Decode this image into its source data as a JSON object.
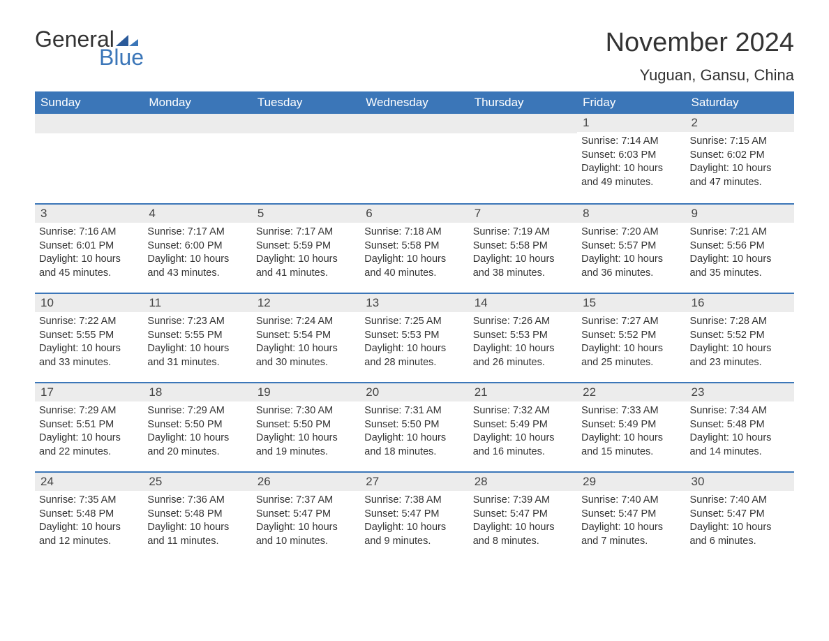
{
  "brand": {
    "word1": "General",
    "word2": "Blue",
    "logo_color": "#3b76b8"
  },
  "title": "November 2024",
  "location": "Yuguan, Gansu, China",
  "colors": {
    "header_bg": "#3b76b8",
    "header_text": "#ffffff",
    "daynum_bg": "#ececec",
    "text": "#333333",
    "divider": "#3b76b8"
  },
  "fonts": {
    "title_size": 38,
    "location_size": 22,
    "header_size": 17,
    "body_size": 14.5
  },
  "weekdays": [
    "Sunday",
    "Monday",
    "Tuesday",
    "Wednesday",
    "Thursday",
    "Friday",
    "Saturday"
  ],
  "first_weekday_index": 5,
  "days": [
    {
      "n": 1,
      "sunrise": "7:14 AM",
      "sunset": "6:03 PM",
      "daylight": "10 hours and 49 minutes."
    },
    {
      "n": 2,
      "sunrise": "7:15 AM",
      "sunset": "6:02 PM",
      "daylight": "10 hours and 47 minutes."
    },
    {
      "n": 3,
      "sunrise": "7:16 AM",
      "sunset": "6:01 PM",
      "daylight": "10 hours and 45 minutes."
    },
    {
      "n": 4,
      "sunrise": "7:17 AM",
      "sunset": "6:00 PM",
      "daylight": "10 hours and 43 minutes."
    },
    {
      "n": 5,
      "sunrise": "7:17 AM",
      "sunset": "5:59 PM",
      "daylight": "10 hours and 41 minutes."
    },
    {
      "n": 6,
      "sunrise": "7:18 AM",
      "sunset": "5:58 PM",
      "daylight": "10 hours and 40 minutes."
    },
    {
      "n": 7,
      "sunrise": "7:19 AM",
      "sunset": "5:58 PM",
      "daylight": "10 hours and 38 minutes."
    },
    {
      "n": 8,
      "sunrise": "7:20 AM",
      "sunset": "5:57 PM",
      "daylight": "10 hours and 36 minutes."
    },
    {
      "n": 9,
      "sunrise": "7:21 AM",
      "sunset": "5:56 PM",
      "daylight": "10 hours and 35 minutes."
    },
    {
      "n": 10,
      "sunrise": "7:22 AM",
      "sunset": "5:55 PM",
      "daylight": "10 hours and 33 minutes."
    },
    {
      "n": 11,
      "sunrise": "7:23 AM",
      "sunset": "5:55 PM",
      "daylight": "10 hours and 31 minutes."
    },
    {
      "n": 12,
      "sunrise": "7:24 AM",
      "sunset": "5:54 PM",
      "daylight": "10 hours and 30 minutes."
    },
    {
      "n": 13,
      "sunrise": "7:25 AM",
      "sunset": "5:53 PM",
      "daylight": "10 hours and 28 minutes."
    },
    {
      "n": 14,
      "sunrise": "7:26 AM",
      "sunset": "5:53 PM",
      "daylight": "10 hours and 26 minutes."
    },
    {
      "n": 15,
      "sunrise": "7:27 AM",
      "sunset": "5:52 PM",
      "daylight": "10 hours and 25 minutes."
    },
    {
      "n": 16,
      "sunrise": "7:28 AM",
      "sunset": "5:52 PM",
      "daylight": "10 hours and 23 minutes."
    },
    {
      "n": 17,
      "sunrise": "7:29 AM",
      "sunset": "5:51 PM",
      "daylight": "10 hours and 22 minutes."
    },
    {
      "n": 18,
      "sunrise": "7:29 AM",
      "sunset": "5:50 PM",
      "daylight": "10 hours and 20 minutes."
    },
    {
      "n": 19,
      "sunrise": "7:30 AM",
      "sunset": "5:50 PM",
      "daylight": "10 hours and 19 minutes."
    },
    {
      "n": 20,
      "sunrise": "7:31 AM",
      "sunset": "5:50 PM",
      "daylight": "10 hours and 18 minutes."
    },
    {
      "n": 21,
      "sunrise": "7:32 AM",
      "sunset": "5:49 PM",
      "daylight": "10 hours and 16 minutes."
    },
    {
      "n": 22,
      "sunrise": "7:33 AM",
      "sunset": "5:49 PM",
      "daylight": "10 hours and 15 minutes."
    },
    {
      "n": 23,
      "sunrise": "7:34 AM",
      "sunset": "5:48 PM",
      "daylight": "10 hours and 14 minutes."
    },
    {
      "n": 24,
      "sunrise": "7:35 AM",
      "sunset": "5:48 PM",
      "daylight": "10 hours and 12 minutes."
    },
    {
      "n": 25,
      "sunrise": "7:36 AM",
      "sunset": "5:48 PM",
      "daylight": "10 hours and 11 minutes."
    },
    {
      "n": 26,
      "sunrise": "7:37 AM",
      "sunset": "5:47 PM",
      "daylight": "10 hours and 10 minutes."
    },
    {
      "n": 27,
      "sunrise": "7:38 AM",
      "sunset": "5:47 PM",
      "daylight": "10 hours and 9 minutes."
    },
    {
      "n": 28,
      "sunrise": "7:39 AM",
      "sunset": "5:47 PM",
      "daylight": "10 hours and 8 minutes."
    },
    {
      "n": 29,
      "sunrise": "7:40 AM",
      "sunset": "5:47 PM",
      "daylight": "10 hours and 7 minutes."
    },
    {
      "n": 30,
      "sunrise": "7:40 AM",
      "sunset": "5:47 PM",
      "daylight": "10 hours and 6 minutes."
    }
  ],
  "labels": {
    "sunrise": "Sunrise:",
    "sunset": "Sunset:",
    "daylight": "Daylight:"
  }
}
